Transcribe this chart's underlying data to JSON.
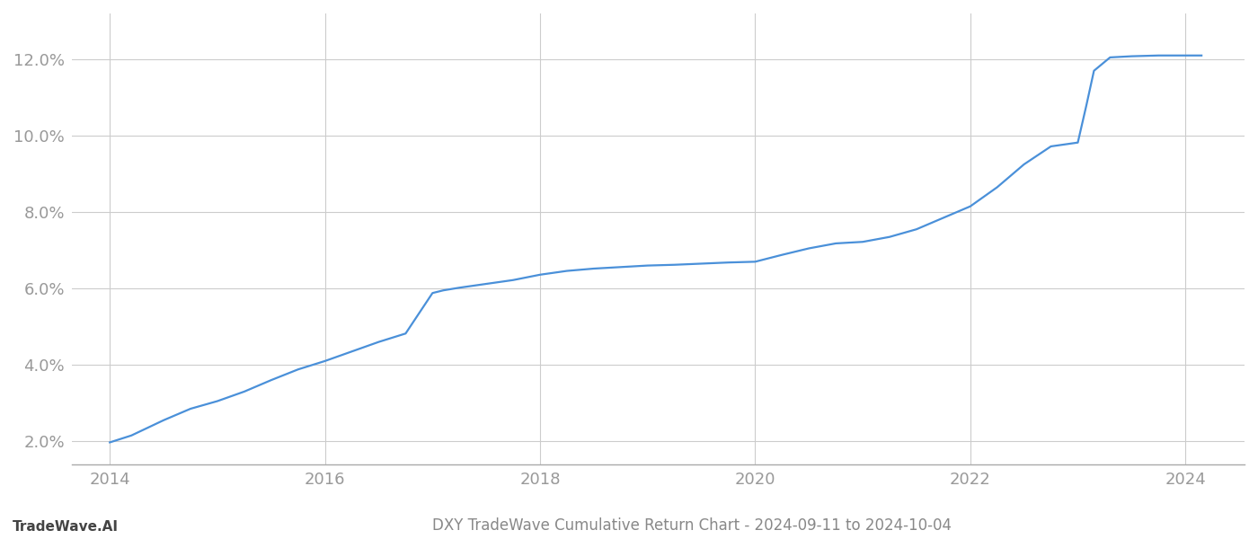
{
  "title": "DXY TradeWave Cumulative Return Chart - 2024-09-11 to 2024-10-04",
  "left_label": "TradeWave.AI",
  "line_color": "#4a90d9",
  "background_color": "#ffffff",
  "grid_color": "#cccccc",
  "x_values": [
    2014.0,
    2014.2,
    2014.5,
    2014.75,
    2015.0,
    2015.25,
    2015.5,
    2015.75,
    2016.0,
    2016.25,
    2016.5,
    2016.75,
    2017.0,
    2017.1,
    2017.25,
    2017.5,
    2017.75,
    2018.0,
    2018.25,
    2018.5,
    2018.75,
    2019.0,
    2019.25,
    2019.5,
    2019.75,
    2020.0,
    2020.25,
    2020.5,
    2020.75,
    2021.0,
    2021.25,
    2021.5,
    2021.75,
    2022.0,
    2022.25,
    2022.5,
    2022.75,
    2023.0,
    2023.08,
    2023.15,
    2023.3,
    2023.5,
    2023.75,
    2024.0,
    2024.15
  ],
  "y_values": [
    1.97,
    2.15,
    2.55,
    2.85,
    3.05,
    3.3,
    3.6,
    3.88,
    4.1,
    4.35,
    4.6,
    4.82,
    5.88,
    5.95,
    6.02,
    6.12,
    6.22,
    6.36,
    6.46,
    6.52,
    6.56,
    6.6,
    6.62,
    6.65,
    6.68,
    6.7,
    6.88,
    7.05,
    7.18,
    7.22,
    7.35,
    7.55,
    7.85,
    8.15,
    8.65,
    9.25,
    9.72,
    9.82,
    10.8,
    11.7,
    12.05,
    12.08,
    12.1,
    12.1,
    12.1
  ],
  "xlim": [
    2013.65,
    2024.55
  ],
  "ylim": [
    1.4,
    13.2
  ],
  "xticks": [
    2014,
    2016,
    2018,
    2020,
    2022,
    2024
  ],
  "yticks": [
    2.0,
    4.0,
    6.0,
    8.0,
    10.0,
    12.0
  ],
  "ytick_labels": [
    "2.0%",
    "4.0%",
    "6.0%",
    "8.0%",
    "10.0%",
    "12.0%"
  ],
  "line_width": 1.6,
  "tick_color": "#999999",
  "tick_fontsize": 13,
  "title_fontsize": 12,
  "label_fontsize": 11,
  "left_label_color": "#444444",
  "title_color": "#888888"
}
